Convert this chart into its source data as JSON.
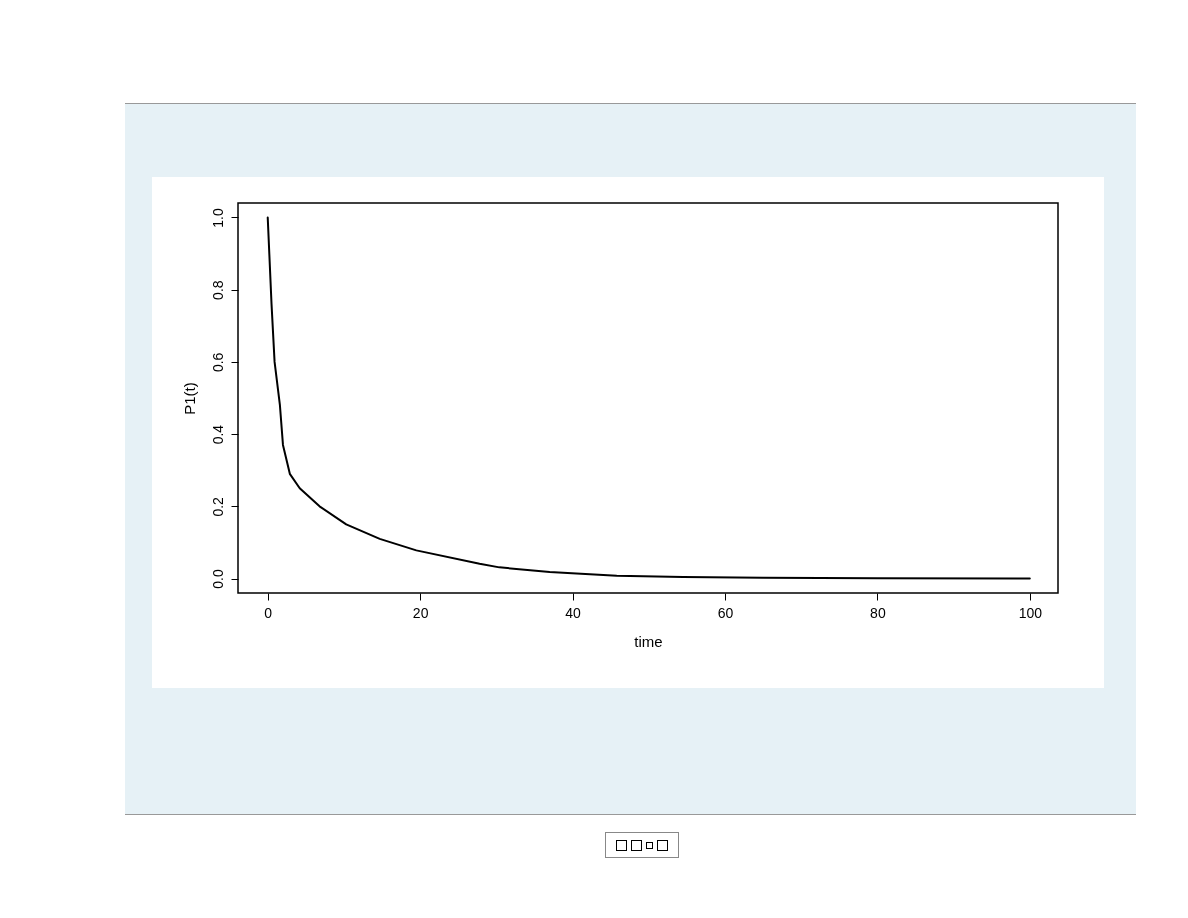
{
  "chart_data": {
    "type": "line",
    "xlabel": "time",
    "ylabel": "P1(t)",
    "x": [
      0,
      0.5,
      0.9,
      1.6,
      2,
      2.9,
      4.2,
      6.8,
      10.3,
      14.7,
      19.5,
      27.8,
      30.4,
      37,
      45.8,
      54.5,
      65,
      80,
      100
    ],
    "series": [
      {
        "color": "#000000",
        "values": [
          1.0,
          0.76,
          0.6,
          0.48,
          0.37,
          0.29,
          0.25,
          0.2,
          0.15,
          0.11,
          0.078,
          0.041,
          0.031,
          0.018,
          0.008,
          0.004,
          0.002,
          0.001,
          0.0
        ]
      }
    ],
    "xlim": [
      -3.9,
      103.7
    ],
    "ylim": [
      -0.04,
      1.04
    ],
    "xticks": [
      0,
      20,
      40,
      60,
      80,
      100
    ],
    "yticks": [
      {
        "value": 0,
        "label": "0.0"
      },
      0.2,
      0.4,
      0.6,
      0.8,
      {
        "value": 1,
        "label": "1.0"
      }
    ],
    "line_style": "solid"
  }
}
